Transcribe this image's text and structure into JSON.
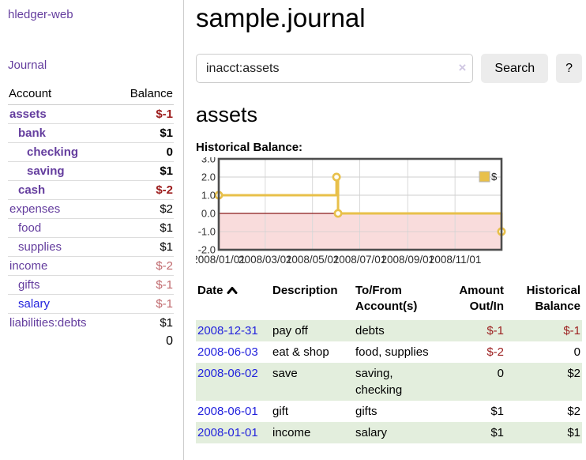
{
  "colors": {
    "link_purple": "#643d9e",
    "link_blue": "#2323dd",
    "negative_strong": "#9c1b1b",
    "negative_soft": "#c0696d",
    "register_negative": "#9c1f1f",
    "shaded_row_green": "#e3eedd",
    "button_gray": "#ececec",
    "chart_line_gold": "#e8c04a",
    "chart_negative_pink": "#f9dcdc",
    "chart_zero_line_red": "#8b1a1a"
  },
  "sidebar": {
    "brand": "hledger-web",
    "nav": {
      "journal": "Journal"
    },
    "accounts_table": {
      "headers": {
        "account": "Account",
        "balance": "Balance"
      },
      "accounts": [
        {
          "name": "assets",
          "indent": 1,
          "bold": true,
          "link_color": "purple",
          "balance": "$-1",
          "balance_tone": "neg"
        },
        {
          "name": "bank",
          "indent": 2,
          "bold": true,
          "link_color": "purple",
          "balance": "$1",
          "balance_tone": "pos"
        },
        {
          "name": "checking",
          "indent": 3,
          "bold": true,
          "link_color": "purple",
          "balance": "0",
          "balance_tone": "pos"
        },
        {
          "name": "saving",
          "indent": 3,
          "bold": true,
          "link_color": "purple",
          "balance": "$1",
          "balance_tone": "pos"
        },
        {
          "name": "cash",
          "indent": 2,
          "bold": true,
          "link_color": "purple",
          "balance": "$-2",
          "balance_tone": "neg"
        },
        {
          "name": "expenses",
          "indent": 1,
          "bold": false,
          "link_color": "purple",
          "balance": "$2",
          "balance_tone": "pos"
        },
        {
          "name": "food",
          "indent": 2,
          "bold": false,
          "link_color": "purple",
          "balance": "$1",
          "balance_tone": "pos"
        },
        {
          "name": "supplies",
          "indent": 2,
          "bold": false,
          "link_color": "purple",
          "balance": "$1",
          "balance_tone": "pos"
        },
        {
          "name": "income",
          "indent": 1,
          "bold": false,
          "link_color": "purple",
          "balance": "$-2",
          "balance_tone": "neg-soft"
        },
        {
          "name": "gifts",
          "indent": 2,
          "bold": false,
          "link_color": "purple",
          "balance": "$-1",
          "balance_tone": "neg-soft"
        },
        {
          "name": "salary",
          "indent": 2,
          "bold": false,
          "link_color": "blue",
          "balance": "$-1",
          "balance_tone": "neg-soft"
        },
        {
          "name": "liabilities:debts",
          "indent": 1,
          "bold": false,
          "link_color": "purple",
          "balance": "$1",
          "balance_tone": "pos"
        }
      ],
      "total": "0"
    }
  },
  "main": {
    "title": "sample.journal",
    "search": {
      "value": "inacct:assets",
      "clear_icon": "×",
      "search_button": "Search",
      "help_button": "?"
    },
    "account_heading": "assets",
    "chart_label": "Historical Balance:",
    "register": {
      "headers": {
        "date": "Date",
        "sort_icon": "chevron-up",
        "description": "Description",
        "tofrom": [
          "To/From",
          "Account(s)"
        ],
        "amount": [
          "Amount",
          "Out/In"
        ],
        "balance": [
          "Historical",
          "Balance"
        ]
      },
      "rows": [
        {
          "date": "2008-12-31",
          "description": "pay off",
          "accounts": "debts",
          "amount": "$-1",
          "amount_tone": "neg",
          "balance": "$-1",
          "balance_tone": "neg",
          "shaded": true
        },
        {
          "date": "2008-06-03",
          "description": "eat & shop",
          "accounts": "food, supplies",
          "amount": "$-2",
          "amount_tone": "neg",
          "balance": "0",
          "balance_tone": "pos",
          "shaded": false
        },
        {
          "date": "2008-06-02",
          "description": "save",
          "accounts": "saving, checking",
          "amount": "0",
          "amount_tone": "pos",
          "balance": "$2",
          "balance_tone": "pos",
          "shaded": true
        },
        {
          "date": "2008-06-01",
          "description": "gift",
          "accounts": "gifts",
          "amount": "$1",
          "amount_tone": "pos",
          "balance": "$2",
          "balance_tone": "pos",
          "shaded": false
        },
        {
          "date": "2008-01-01",
          "description": "income",
          "accounts": "salary",
          "amount": "$1",
          "amount_tone": "pos",
          "balance": "$1",
          "balance_tone": "pos",
          "shaded": true
        }
      ]
    }
  },
  "chart_data": {
    "type": "line",
    "title": "Historical Balance:",
    "step": true,
    "x_domain": [
      "2008-01-01",
      "2008-12-31"
    ],
    "ylim": [
      -2,
      3
    ],
    "y_ticks": [
      "3.0",
      "2.0",
      "1.0",
      "0.0",
      "-1.0",
      "-2.0"
    ],
    "y_tick_values": [
      3,
      2,
      1,
      0,
      -1,
      -2
    ],
    "x_ticks": [
      "2008/01/01",
      "2008/03/01",
      "2008/05/01",
      "2008/07/01",
      "2008/09/01",
      "2008/11/01"
    ],
    "grid": true,
    "negative_region_shaded": true,
    "legend": {
      "label": "$",
      "position": "top-right"
    },
    "series": [
      {
        "name": "$",
        "points": [
          {
            "x": "2008-01-01",
            "y": 1
          },
          {
            "x": "2008-06-01",
            "y": 2
          },
          {
            "x": "2008-06-03",
            "y": 0
          },
          {
            "x": "2008-12-31",
            "y": -1
          }
        ]
      }
    ]
  }
}
